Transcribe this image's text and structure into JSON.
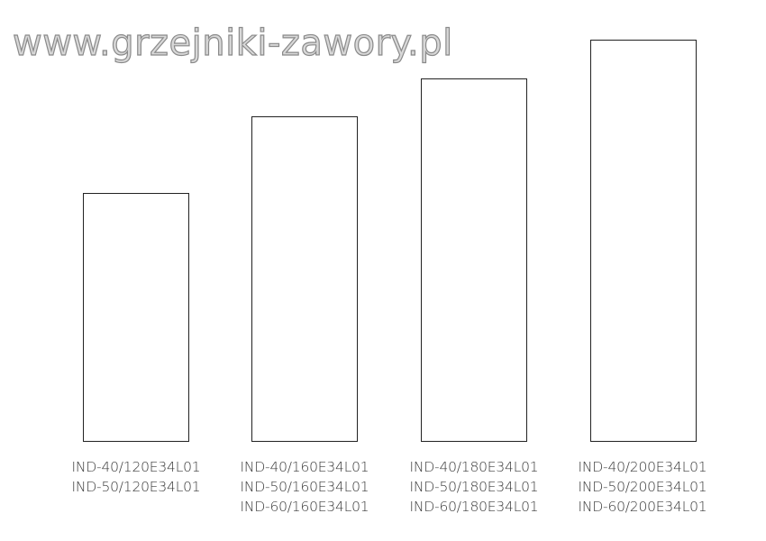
{
  "models": [
    {
      "labels": [
        "IND-40/120E34L01",
        "IND-50/120E34L01"
      ]
    },
    {
      "labels": [
        "IND-40/160E34L01",
        "IND-50/160E34L01",
        "IND-60/160E34L01"
      ]
    },
    {
      "labels": [
        "IND-40/180E34L01",
        "IND-50/180E34L01",
        "IND-60/180E34L01"
      ]
    },
    {
      "labels": [
        "IND-40/200E34L01",
        "IND-50/200E34L01",
        "IND-60/200E34L01"
      ]
    }
  ],
  "watermark": "www.grzejniki-zawory.pl"
}
